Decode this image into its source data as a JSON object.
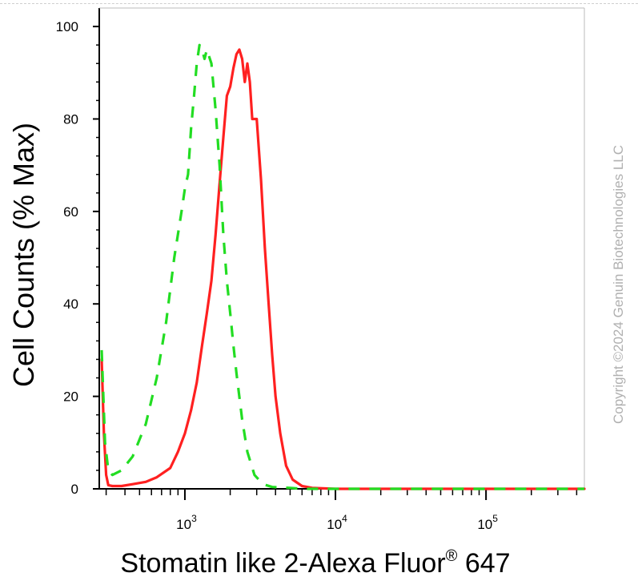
{
  "chart_data": {
    "type": "line",
    "title": "",
    "xlabel_main": "Stomatin like 2-Alexa Fluor",
    "xlabel_sup": "®",
    "xlabel_tail": " 647",
    "ylabel": "Cell Counts (% Max)",
    "x_scale": "log",
    "xlim": [
      270,
      450000
    ],
    "ylim": [
      0,
      104
    ],
    "y_ticks": [
      0,
      20,
      40,
      60,
      80,
      100
    ],
    "x_ticks": [
      {
        "value": 1000,
        "base": "10",
        "exp": "3"
      },
      {
        "value": 10000,
        "base": "10",
        "exp": "4"
      },
      {
        "value": 100000,
        "base": "10",
        "exp": "5"
      }
    ],
    "grid": false,
    "legend": "none",
    "series": [
      {
        "color": "#ff2020",
        "style": "solid",
        "points": [
          [
            280,
            28
          ],
          [
            290,
            12
          ],
          [
            300,
            3
          ],
          [
            310,
            0.8
          ],
          [
            330,
            0.6
          ],
          [
            380,
            0.6
          ],
          [
            450,
            1
          ],
          [
            550,
            1.5
          ],
          [
            650,
            2.5
          ],
          [
            800,
            4.5
          ],
          [
            900,
            8
          ],
          [
            1000,
            12
          ],
          [
            1100,
            17
          ],
          [
            1200,
            23
          ],
          [
            1300,
            31
          ],
          [
            1400,
            38
          ],
          [
            1500,
            45
          ],
          [
            1600,
            55
          ],
          [
            1700,
            66
          ],
          [
            1800,
            76
          ],
          [
            1900,
            85
          ],
          [
            2000,
            87
          ],
          [
            2100,
            91
          ],
          [
            2200,
            94
          ],
          [
            2300,
            95
          ],
          [
            2400,
            93
          ],
          [
            2500,
            88
          ],
          [
            2600,
            92
          ],
          [
            2700,
            88
          ],
          [
            2800,
            80
          ],
          [
            3000,
            80
          ],
          [
            3200,
            67
          ],
          [
            3400,
            52
          ],
          [
            3600,
            40
          ],
          [
            3800,
            29
          ],
          [
            4000,
            20
          ],
          [
            4300,
            12
          ],
          [
            4700,
            5
          ],
          [
            5200,
            2
          ],
          [
            6000,
            0.6
          ],
          [
            7000,
            0.2
          ],
          [
            10000,
            0
          ],
          [
            450000,
            0
          ]
        ]
      },
      {
        "color": "#22dd22",
        "style": "dashed",
        "points": [
          [
            280,
            30
          ],
          [
            295,
            10
          ],
          [
            310,
            4
          ],
          [
            330,
            3
          ],
          [
            380,
            4
          ],
          [
            450,
            7
          ],
          [
            550,
            14
          ],
          [
            650,
            24
          ],
          [
            750,
            36
          ],
          [
            850,
            50
          ],
          [
            950,
            60
          ],
          [
            1000,
            65
          ],
          [
            1050,
            68
          ],
          [
            1100,
            78
          ],
          [
            1150,
            85
          ],
          [
            1200,
            92
          ],
          [
            1250,
            96
          ],
          [
            1300,
            95
          ],
          [
            1350,
            93
          ],
          [
            1400,
            95
          ],
          [
            1500,
            92
          ],
          [
            1600,
            82
          ],
          [
            1700,
            70
          ],
          [
            1800,
            55
          ],
          [
            1900,
            45
          ],
          [
            2000,
            38
          ],
          [
            2100,
            31
          ],
          [
            2200,
            25
          ],
          [
            2400,
            15
          ],
          [
            2600,
            8
          ],
          [
            2900,
            3
          ],
          [
            3300,
            1
          ],
          [
            3800,
            0.4
          ],
          [
            5000,
            0.2
          ],
          [
            6000,
            0
          ],
          [
            450000,
            0
          ]
        ]
      }
    ]
  },
  "watermark": "Copyright ©2024 Genuin Biotechnologies LLC"
}
